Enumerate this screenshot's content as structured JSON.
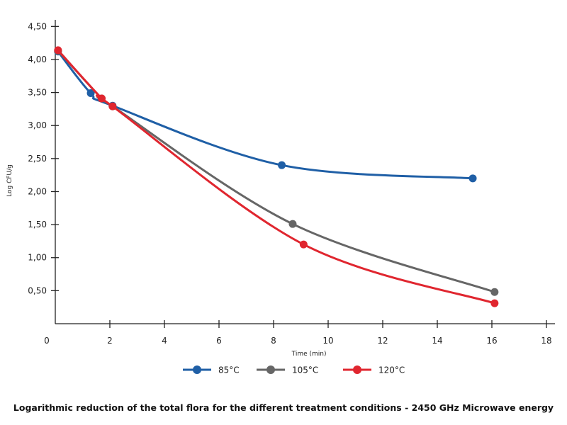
{
  "chart_data": {
    "type": "line",
    "title": "Logarithmic reduction of the total flora for the different treatment conditions - 2450 GHz Microwave energy",
    "xlabel": "Time (min)",
    "ylabel": "Log CFU/g",
    "xlim": [
      0,
      18
    ],
    "ylim": [
      0,
      4.6
    ],
    "x_ticks": [
      {
        "v": 0,
        "label": "0"
      },
      {
        "v": 2,
        "label": "2"
      },
      {
        "v": 4,
        "label": "4"
      },
      {
        "v": 6,
        "label": "6"
      },
      {
        "v": 8,
        "label": "8"
      },
      {
        "v": 10,
        "label": "10"
      },
      {
        "v": 12,
        "label": "12"
      },
      {
        "v": 14,
        "label": "14"
      },
      {
        "v": 16,
        "label": "16"
      },
      {
        "v": 18,
        "label": "18"
      }
    ],
    "y_ticks": [
      {
        "v": 0.5,
        "label": "0,50"
      },
      {
        "v": 1.0,
        "label": "1,00"
      },
      {
        "v": 1.5,
        "label": "1,50"
      },
      {
        "v": 2.0,
        "label": "2,00"
      },
      {
        "v": 2.5,
        "label": "2,50"
      },
      {
        "v": 3.0,
        "label": "3,00"
      },
      {
        "v": 3.5,
        "label": "3,50"
      },
      {
        "v": 4.0,
        "label": "4,00"
      },
      {
        "v": 4.5,
        "label": "4,50"
      }
    ],
    "grid": false,
    "legend": "bottom",
    "series": [
      {
        "name": "85°C",
        "color": "#1f5fa6",
        "points": [
          [
            0.1,
            4.12
          ],
          [
            1.3,
            3.49
          ],
          [
            2.1,
            3.3
          ],
          [
            8.3,
            2.4
          ],
          [
            15.3,
            2.2
          ]
        ]
      },
      {
        "name": "105°C",
        "color": "#666666",
        "points": [
          [
            0.1,
            4.13
          ],
          [
            1.7,
            3.41
          ],
          [
            2.1,
            3.29
          ],
          [
            8.7,
            1.51
          ],
          [
            16.1,
            0.48
          ]
        ]
      },
      {
        "name": "120°C",
        "color": "#e0262f",
        "points": [
          [
            0.1,
            4.14
          ],
          [
            1.7,
            3.41
          ],
          [
            2.1,
            3.29
          ],
          [
            9.1,
            1.2
          ],
          [
            16.1,
            0.31
          ]
        ]
      }
    ]
  }
}
